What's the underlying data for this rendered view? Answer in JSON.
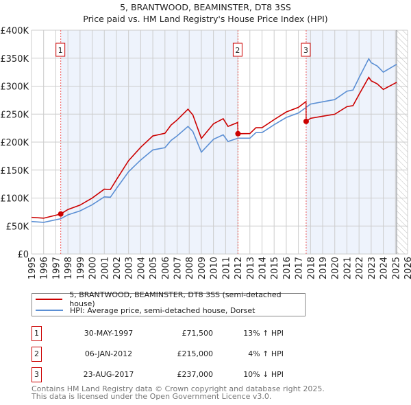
{
  "chart_data": {
    "type": "line",
    "title": "5, BRANTWOOD, BEAMINSTER, DT8 3SS",
    "subtitle": "Price paid vs. HM Land Registry's House Price Index (HPI)",
    "xlim": [
      1995,
      2026
    ],
    "ylim": [
      0,
      400000
    ],
    "yticks": [
      "£0",
      "£50K",
      "£100K",
      "£150K",
      "£200K",
      "£250K",
      "£300K",
      "£350K",
      "£400K"
    ],
    "xticks": [
      "1995",
      "1996",
      "1997",
      "1998",
      "1999",
      "2000",
      "2001",
      "2002",
      "2003",
      "2004",
      "2005",
      "2006",
      "2007",
      "2008",
      "2009",
      "2010",
      "2011",
      "2012",
      "2013",
      "2014",
      "2015",
      "2016",
      "2017",
      "2018",
      "2019",
      "2020",
      "2021",
      "2022",
      "2023",
      "2024",
      "2025",
      "2026"
    ],
    "grid": true,
    "forecast_from": 2025.1,
    "series": [
      {
        "name": "5, BRANTWOOD, BEAMINSTER, DT8 3SS (semi-detached house)",
        "color": "#cc0000",
        "x": [
          1995,
          1996,
          1997.41,
          1998,
          1999,
          2000,
          2001,
          2001.5,
          2002,
          2003,
          2004,
          2005,
          2006,
          2006.5,
          2007,
          2007.9,
          2008.3,
          2009,
          2010,
          2010.8,
          2011.2,
          2012.0,
          2012.02,
          2013,
          2013.5,
          2014,
          2015,
          2016,
          2017,
          2017.63,
          2017.64,
          2018,
          2019,
          2020,
          2021,
          2021.5,
          2022,
          2022.8,
          2023,
          2023.5,
          2024,
          2025.1
        ],
        "y": [
          65500,
          64000,
          71500,
          79500,
          87400,
          99900,
          115800,
          115200,
          132800,
          166800,
          190700,
          211000,
          215700,
          230400,
          239500,
          258800,
          248600,
          206600,
          232700,
          241800,
          228100,
          235000,
          215000,
          215300,
          225700,
          225700,
          240200,
          253800,
          262100,
          272500,
          237000,
          242500,
          246200,
          249800,
          263400,
          265200,
          285100,
          315800,
          309500,
          304100,
          294100,
          306800
        ]
      },
      {
        "name": "HPI: Average price, semi-detached house, Dorset",
        "color": "#5b8fd4",
        "x": [
          1995,
          1996,
          1997.41,
          1998,
          1999,
          2000,
          2001,
          2001.5,
          2002,
          2003,
          2004,
          2005,
          2006,
          2006.5,
          2007,
          2007.9,
          2008.3,
          2009,
          2010,
          2010.8,
          2011.2,
          2012.02,
          2013,
          2013.5,
          2014,
          2015,
          2016,
          2017,
          2017.64,
          2018,
          2019,
          2020,
          2021,
          2021.5,
          2022,
          2022.8,
          2023,
          2023.5,
          2024,
          2025.1
        ],
        "y": [
          58000,
          56500,
          63000,
          70000,
          77000,
          88000,
          102000,
          101500,
          117000,
          147000,
          168000,
          186000,
          190000,
          203000,
          211000,
          228000,
          219000,
          182000,
          205000,
          213000,
          201000,
          207000,
          207000,
          217000,
          217000,
          231000,
          244000,
          252000,
          262000,
          268000,
          272000,
          276000,
          291000,
          293000,
          315000,
          349000,
          342000,
          336000,
          325000,
          339000
        ]
      }
    ],
    "sales": [
      {
        "label": "1",
        "x": 1997.41,
        "y": 71500,
        "date": "30-MAY-1997",
        "price": "£71,500",
        "hpi": "13% ↑ HPI"
      },
      {
        "label": "2",
        "x": 2012.02,
        "y": 215000,
        "date": "06-JAN-2012",
        "price": "£215,000",
        "hpi": "4% ↑ HPI"
      },
      {
        "label": "3",
        "x": 2017.64,
        "y": 237000,
        "date": "23-AUG-2017",
        "price": "£237,000",
        "hpi": "10% ↓ HPI"
      }
    ]
  },
  "footer": {
    "line1": "Contains HM Land Registry data © Crown copyright and database right 2025.",
    "line2": "This data is licensed under the Open Government Licence v3.0."
  }
}
